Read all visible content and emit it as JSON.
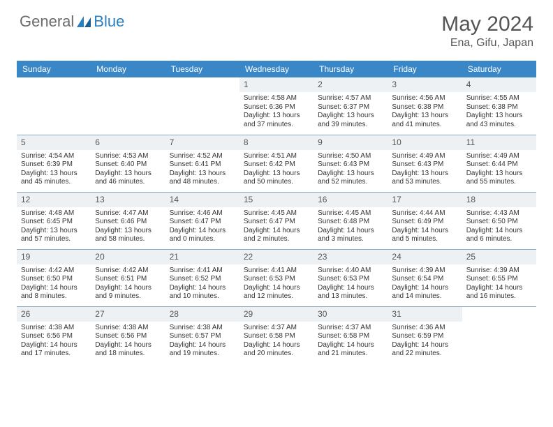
{
  "brand": {
    "part1": "General",
    "part2": "Blue"
  },
  "title": "May 2024",
  "location": "Ena, Gifu, Japan",
  "colors": {
    "header_bg": "#3a87c8",
    "header_text": "#ffffff",
    "daynum_bg": "#eef1f3",
    "border": "#8aa9c2",
    "title_color": "#555555",
    "logo_gray": "#6b6b6b",
    "logo_blue": "#2a7fbf"
  },
  "weekdays": [
    "Sunday",
    "Monday",
    "Tuesday",
    "Wednesday",
    "Thursday",
    "Friday",
    "Saturday"
  ],
  "weeks": [
    [
      null,
      null,
      null,
      {
        "d": "1",
        "sr": "Sunrise: 4:58 AM",
        "ss": "Sunset: 6:36 PM",
        "dl1": "Daylight: 13 hours",
        "dl2": "and 37 minutes."
      },
      {
        "d": "2",
        "sr": "Sunrise: 4:57 AM",
        "ss": "Sunset: 6:37 PM",
        "dl1": "Daylight: 13 hours",
        "dl2": "and 39 minutes."
      },
      {
        "d": "3",
        "sr": "Sunrise: 4:56 AM",
        "ss": "Sunset: 6:38 PM",
        "dl1": "Daylight: 13 hours",
        "dl2": "and 41 minutes."
      },
      {
        "d": "4",
        "sr": "Sunrise: 4:55 AM",
        "ss": "Sunset: 6:38 PM",
        "dl1": "Daylight: 13 hours",
        "dl2": "and 43 minutes."
      }
    ],
    [
      {
        "d": "5",
        "sr": "Sunrise: 4:54 AM",
        "ss": "Sunset: 6:39 PM",
        "dl1": "Daylight: 13 hours",
        "dl2": "and 45 minutes."
      },
      {
        "d": "6",
        "sr": "Sunrise: 4:53 AM",
        "ss": "Sunset: 6:40 PM",
        "dl1": "Daylight: 13 hours",
        "dl2": "and 46 minutes."
      },
      {
        "d": "7",
        "sr": "Sunrise: 4:52 AM",
        "ss": "Sunset: 6:41 PM",
        "dl1": "Daylight: 13 hours",
        "dl2": "and 48 minutes."
      },
      {
        "d": "8",
        "sr": "Sunrise: 4:51 AM",
        "ss": "Sunset: 6:42 PM",
        "dl1": "Daylight: 13 hours",
        "dl2": "and 50 minutes."
      },
      {
        "d": "9",
        "sr": "Sunrise: 4:50 AM",
        "ss": "Sunset: 6:43 PM",
        "dl1": "Daylight: 13 hours",
        "dl2": "and 52 minutes."
      },
      {
        "d": "10",
        "sr": "Sunrise: 4:49 AM",
        "ss": "Sunset: 6:43 PM",
        "dl1": "Daylight: 13 hours",
        "dl2": "and 53 minutes."
      },
      {
        "d": "11",
        "sr": "Sunrise: 4:49 AM",
        "ss": "Sunset: 6:44 PM",
        "dl1": "Daylight: 13 hours",
        "dl2": "and 55 minutes."
      }
    ],
    [
      {
        "d": "12",
        "sr": "Sunrise: 4:48 AM",
        "ss": "Sunset: 6:45 PM",
        "dl1": "Daylight: 13 hours",
        "dl2": "and 57 minutes."
      },
      {
        "d": "13",
        "sr": "Sunrise: 4:47 AM",
        "ss": "Sunset: 6:46 PM",
        "dl1": "Daylight: 13 hours",
        "dl2": "and 58 minutes."
      },
      {
        "d": "14",
        "sr": "Sunrise: 4:46 AM",
        "ss": "Sunset: 6:47 PM",
        "dl1": "Daylight: 14 hours",
        "dl2": "and 0 minutes."
      },
      {
        "d": "15",
        "sr": "Sunrise: 4:45 AM",
        "ss": "Sunset: 6:47 PM",
        "dl1": "Daylight: 14 hours",
        "dl2": "and 2 minutes."
      },
      {
        "d": "16",
        "sr": "Sunrise: 4:45 AM",
        "ss": "Sunset: 6:48 PM",
        "dl1": "Daylight: 14 hours",
        "dl2": "and 3 minutes."
      },
      {
        "d": "17",
        "sr": "Sunrise: 4:44 AM",
        "ss": "Sunset: 6:49 PM",
        "dl1": "Daylight: 14 hours",
        "dl2": "and 5 minutes."
      },
      {
        "d": "18",
        "sr": "Sunrise: 4:43 AM",
        "ss": "Sunset: 6:50 PM",
        "dl1": "Daylight: 14 hours",
        "dl2": "and 6 minutes."
      }
    ],
    [
      {
        "d": "19",
        "sr": "Sunrise: 4:42 AM",
        "ss": "Sunset: 6:50 PM",
        "dl1": "Daylight: 14 hours",
        "dl2": "and 8 minutes."
      },
      {
        "d": "20",
        "sr": "Sunrise: 4:42 AM",
        "ss": "Sunset: 6:51 PM",
        "dl1": "Daylight: 14 hours",
        "dl2": "and 9 minutes."
      },
      {
        "d": "21",
        "sr": "Sunrise: 4:41 AM",
        "ss": "Sunset: 6:52 PM",
        "dl1": "Daylight: 14 hours",
        "dl2": "and 10 minutes."
      },
      {
        "d": "22",
        "sr": "Sunrise: 4:41 AM",
        "ss": "Sunset: 6:53 PM",
        "dl1": "Daylight: 14 hours",
        "dl2": "and 12 minutes."
      },
      {
        "d": "23",
        "sr": "Sunrise: 4:40 AM",
        "ss": "Sunset: 6:53 PM",
        "dl1": "Daylight: 14 hours",
        "dl2": "and 13 minutes."
      },
      {
        "d": "24",
        "sr": "Sunrise: 4:39 AM",
        "ss": "Sunset: 6:54 PM",
        "dl1": "Daylight: 14 hours",
        "dl2": "and 14 minutes."
      },
      {
        "d": "25",
        "sr": "Sunrise: 4:39 AM",
        "ss": "Sunset: 6:55 PM",
        "dl1": "Daylight: 14 hours",
        "dl2": "and 16 minutes."
      }
    ],
    [
      {
        "d": "26",
        "sr": "Sunrise: 4:38 AM",
        "ss": "Sunset: 6:56 PM",
        "dl1": "Daylight: 14 hours",
        "dl2": "and 17 minutes."
      },
      {
        "d": "27",
        "sr": "Sunrise: 4:38 AM",
        "ss": "Sunset: 6:56 PM",
        "dl1": "Daylight: 14 hours",
        "dl2": "and 18 minutes."
      },
      {
        "d": "28",
        "sr": "Sunrise: 4:38 AM",
        "ss": "Sunset: 6:57 PM",
        "dl1": "Daylight: 14 hours",
        "dl2": "and 19 minutes."
      },
      {
        "d": "29",
        "sr": "Sunrise: 4:37 AM",
        "ss": "Sunset: 6:58 PM",
        "dl1": "Daylight: 14 hours",
        "dl2": "and 20 minutes."
      },
      {
        "d": "30",
        "sr": "Sunrise: 4:37 AM",
        "ss": "Sunset: 6:58 PM",
        "dl1": "Daylight: 14 hours",
        "dl2": "and 21 minutes."
      },
      {
        "d": "31",
        "sr": "Sunrise: 4:36 AM",
        "ss": "Sunset: 6:59 PM",
        "dl1": "Daylight: 14 hours",
        "dl2": "and 22 minutes."
      },
      null
    ]
  ]
}
